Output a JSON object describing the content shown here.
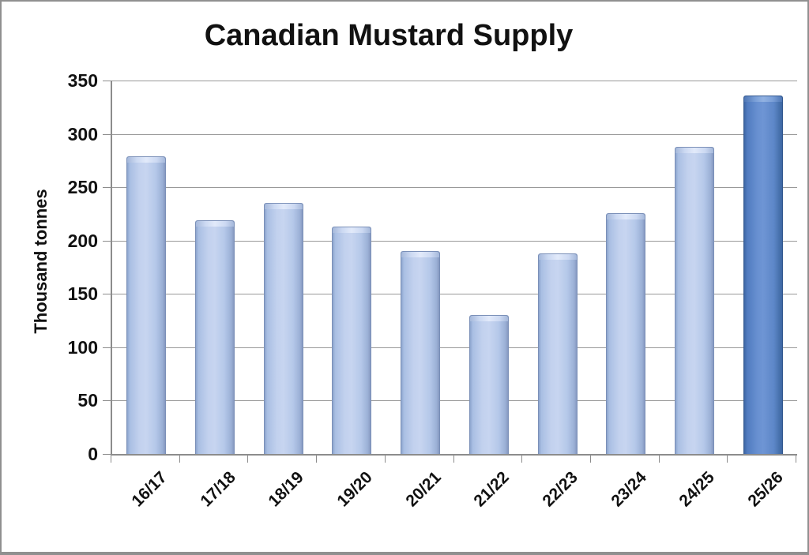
{
  "chart_data": {
    "type": "bar",
    "title": "Canadian Mustard Supply",
    "ylabel": "Thousand tonnes",
    "xlabel": "",
    "categories": [
      "16/17",
      "17/18",
      "18/19",
      "19/20",
      "20/21",
      "21/22",
      "22/23",
      "23/24",
      "24/25",
      "25/26"
    ],
    "values": [
      279,
      219,
      235,
      213,
      190,
      130,
      188,
      226,
      288,
      336
    ],
    "ylim": [
      0,
      350
    ],
    "yticks": [
      0,
      50,
      100,
      150,
      200,
      250,
      300,
      350
    ],
    "grid": "horizontal",
    "legend": "none",
    "highlight_index": 9,
    "colors": {
      "bar_light_body": "#b5c8e9",
      "bar_light_edge": "#8ca4cd",
      "bar_light_cap": "#e2eafa",
      "bar_dark_body": "#5d87c8",
      "bar_dark_edge": "#3d66a4",
      "bar_dark_cap": "#92b2e2",
      "gridline": "#999999",
      "axis": "#8c8c8c",
      "text": "#111111",
      "background": "#ffffff",
      "border": "#909090"
    }
  }
}
